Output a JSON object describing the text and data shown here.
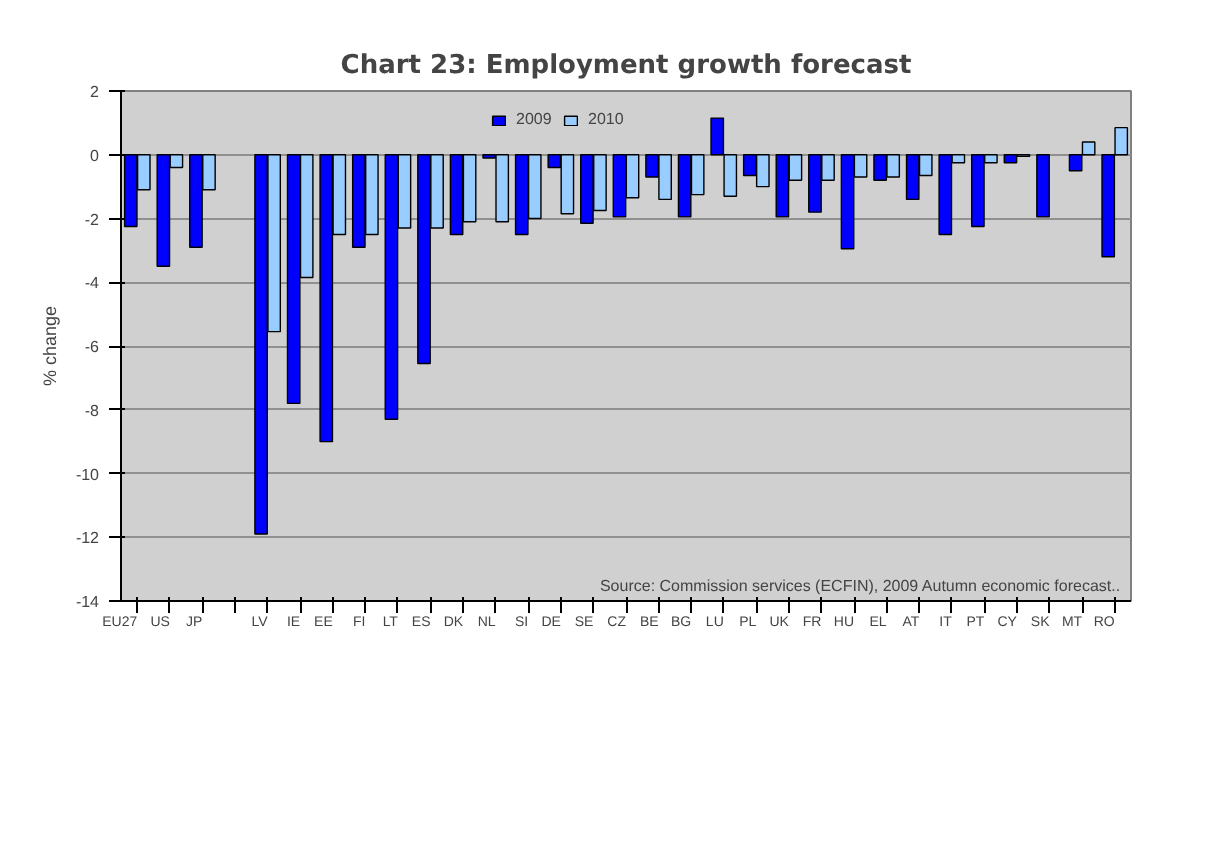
{
  "chart_data": {
    "type": "bar",
    "title": "Chart 23: Employment growth forecast",
    "ylabel": "% change",
    "categories": [
      "EU27",
      "US",
      "JP",
      null,
      "LV",
      "IE",
      "EE",
      "FI",
      "LT",
      "ES",
      "DK",
      "NL",
      "SI",
      "DE",
      "SE",
      "CZ",
      "BE",
      "BG",
      "LU",
      "PL",
      "UK",
      "FR",
      "HU",
      "EL",
      "AT",
      "IT",
      "PT",
      "CY",
      "SK",
      "MT",
      "RO"
    ],
    "series": [
      {
        "name": "2009",
        "color": "#0000ff",
        "values": [
          -2.25,
          -3.5,
          -2.9,
          null,
          -11.9,
          -7.8,
          -9.0,
          -2.9,
          -8.3,
          -6.55,
          -2.5,
          -0.1,
          -2.5,
          -0.4,
          -2.15,
          -1.95,
          -0.7,
          -1.95,
          1.15,
          -0.65,
          -1.95,
          -1.8,
          -2.95,
          -0.8,
          -1.4,
          -2.5,
          -2.25,
          -0.25,
          -1.95,
          -0.5,
          -3.2
        ]
      },
      {
        "name": "2010",
        "color": "#99ccff",
        "values": [
          -1.1,
          -0.4,
          -1.1,
          null,
          -5.55,
          -3.85,
          -2.5,
          -2.5,
          -2.3,
          -2.3,
          -2.1,
          -2.1,
          -2.0,
          -1.85,
          -1.75,
          -1.35,
          -1.4,
          -1.25,
          -1.3,
          -1.0,
          -0.8,
          -0.8,
          -0.7,
          -0.7,
          -0.65,
          -0.25,
          -0.25,
          -0.05,
          null,
          0.4,
          0.85
        ]
      }
    ],
    "ylim": [
      -14,
      2
    ],
    "yticks": [
      -14,
      -12,
      -10,
      -8,
      -6,
      -4,
      -2,
      0,
      2
    ],
    "grid": "y",
    "legend": "top",
    "annotations": [
      "Source: Commission services (ECFIN), 2009 Autumn economic forecast.."
    ]
  }
}
